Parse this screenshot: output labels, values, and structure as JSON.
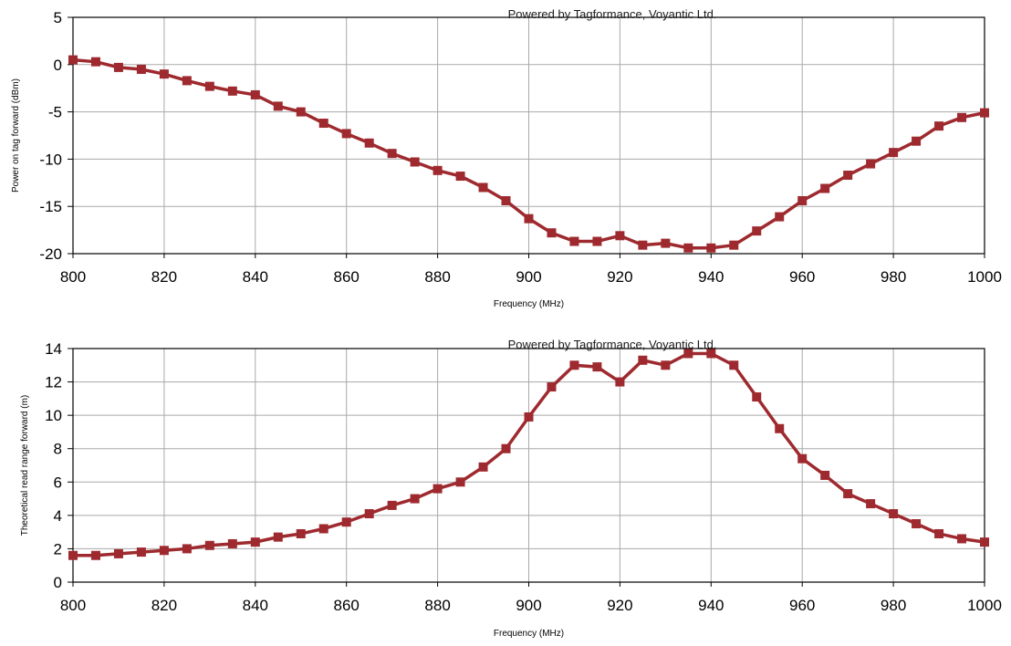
{
  "chart_data": [
    {
      "type": "line",
      "watermark": "Powered by Tagformance, Voyantic Ltd.",
      "xlabel": "Frequency (MHz)",
      "ylabel": "Power on tag forward (dBm)",
      "xlim": [
        800,
        1000
      ],
      "ylim": [
        -20,
        5
      ],
      "grid": true,
      "x_ticks": [
        800,
        820,
        840,
        860,
        880,
        900,
        920,
        940,
        960,
        980,
        1000
      ],
      "y_ticks": [
        -20,
        -15,
        -10,
        -5,
        0,
        5
      ],
      "color": "#9e2a2f",
      "series": [
        {
          "x": [
            800,
            805,
            810,
            815,
            820,
            825,
            830,
            835,
            840,
            845,
            850,
            855,
            860,
            865,
            870,
            875,
            880,
            885,
            890,
            895,
            900,
            905,
            910,
            915,
            920,
            925,
            930,
            935,
            940,
            945,
            950,
            955,
            960,
            965,
            970,
            975,
            980,
            985,
            990,
            995,
            1000
          ],
          "y": [
            0.5,
            0.3,
            -0.3,
            -0.5,
            -1.0,
            -1.7,
            -2.3,
            -2.8,
            -3.2,
            -4.4,
            -5.0,
            -6.2,
            -7.3,
            -8.3,
            -9.4,
            -10.3,
            -11.2,
            -11.8,
            -13.0,
            -14.4,
            -16.3,
            -17.8,
            -18.7,
            -18.7,
            -18.1,
            -19.1,
            -18.9,
            -19.4,
            -19.4,
            -19.1,
            -17.6,
            -16.1,
            -14.4,
            -13.1,
            -11.7,
            -10.5,
            -9.3,
            -8.1,
            -6.5,
            -5.6,
            -5.1
          ]
        }
      ]
    },
    {
      "type": "line",
      "watermark": "Powered by Tagformance, Voyantic Ltd.",
      "xlabel": "Frequency (MHz)",
      "ylabel": "Theoretical read range forward (m)",
      "xlim": [
        800,
        1000
      ],
      "ylim": [
        0,
        14
      ],
      "grid": true,
      "x_ticks": [
        800,
        820,
        840,
        860,
        880,
        900,
        920,
        940,
        960,
        980,
        1000
      ],
      "y_ticks": [
        0,
        2,
        4,
        6,
        8,
        10,
        12,
        14
      ],
      "color": "#9e2a2f",
      "series": [
        {
          "x": [
            800,
            805,
            810,
            815,
            820,
            825,
            830,
            835,
            840,
            845,
            850,
            855,
            860,
            865,
            870,
            875,
            880,
            885,
            890,
            895,
            900,
            905,
            910,
            915,
            920,
            925,
            930,
            935,
            940,
            945,
            950,
            955,
            960,
            965,
            970,
            975,
            980,
            985,
            990,
            995,
            1000
          ],
          "y": [
            1.6,
            1.6,
            1.7,
            1.8,
            1.9,
            2.0,
            2.2,
            2.3,
            2.4,
            2.7,
            2.9,
            3.2,
            3.6,
            4.1,
            4.6,
            5.0,
            5.6,
            6.0,
            6.9,
            8.0,
            9.9,
            11.7,
            13.0,
            12.9,
            12.0,
            13.3,
            13.0,
            13.7,
            13.7,
            13.0,
            11.1,
            9.2,
            7.4,
            6.4,
            5.3,
            4.7,
            4.1,
            3.5,
            2.9,
            2.6,
            2.4
          ]
        }
      ]
    }
  ]
}
